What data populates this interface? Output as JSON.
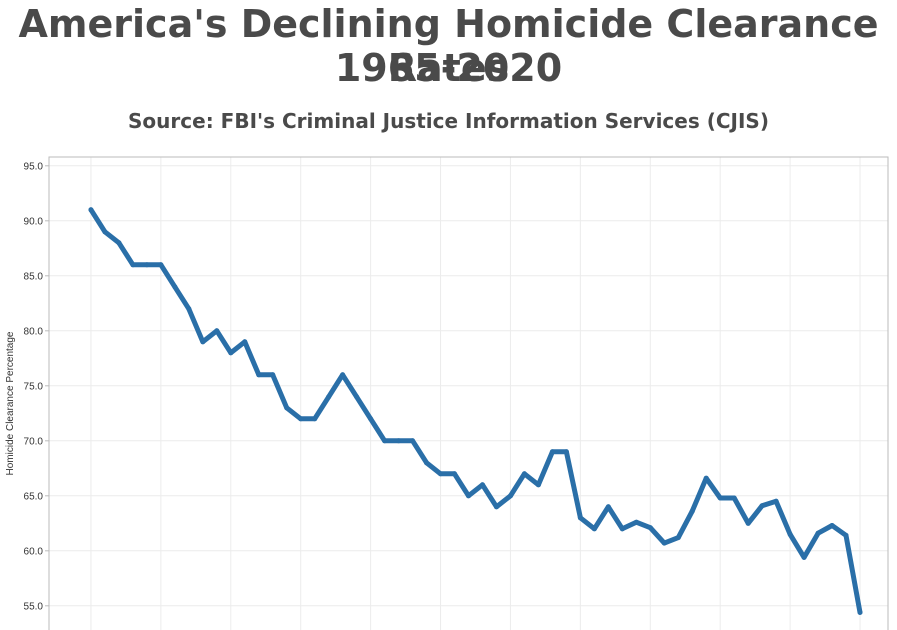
{
  "header": {
    "title_line1": "America's Declining Homicide Clearance Rates",
    "title_line2": "1965-2020",
    "subtitle": "Source: FBI's Criminal Justice Information Services (CJIS)"
  },
  "colors": {
    "line": "#2a6fa8",
    "grid": "#ececec",
    "axis": "#bbbbbb",
    "text": "#4a4a4a"
  },
  "chart_data": {
    "type": "line",
    "title": "America's Declining Homicide Clearance Rates 1965-2020",
    "subtitle": "Source: FBI's Criminal Justice Information Services (CJIS)",
    "xlabel": "",
    "ylabel": "Homicide Clearance Percentage",
    "xlim": [
      1962,
      2022
    ],
    "ylim": [
      52.8,
      95.8
    ],
    "yticks": [
      "95.0",
      "90.0",
      "85.0",
      "80.0",
      "75.0",
      "70.0",
      "65.0",
      "60.0",
      "55.0"
    ],
    "grid": true,
    "x": [
      1965,
      1966,
      1967,
      1968,
      1969,
      1970,
      1971,
      1972,
      1973,
      1974,
      1975,
      1976,
      1977,
      1978,
      1979,
      1980,
      1981,
      1982,
      1983,
      1984,
      1985,
      1986,
      1987,
      1988,
      1989,
      1990,
      1991,
      1992,
      1993,
      1994,
      1995,
      1996,
      1997,
      1998,
      1999,
      2000,
      2001,
      2002,
      2003,
      2004,
      2005,
      2006,
      2007,
      2008,
      2009,
      2010,
      2011,
      2012,
      2013,
      2014,
      2015,
      2016,
      2017,
      2018,
      2019,
      2020
    ],
    "series": [
      {
        "values": [
          91.0,
          89.0,
          88.0,
          86.0,
          86.0,
          86.0,
          84.0,
          82.0,
          79.0,
          80.0,
          78.0,
          79.0,
          76.0,
          76.0,
          73.0,
          72.0,
          72.0,
          74.0,
          76.0,
          74.0,
          72.0,
          70.0,
          70.0,
          70.0,
          68.0,
          67.0,
          67.0,
          65.0,
          66.0,
          64.0,
          65.0,
          67.0,
          66.0,
          69.0,
          69.0,
          63.0,
          62.0,
          64.0,
          62.0,
          62.6,
          62.1,
          60.7,
          61.2,
          63.6,
          66.6,
          64.8,
          64.8,
          62.5,
          64.1,
          64.5,
          61.5,
          59.4,
          61.6,
          62.3,
          61.4,
          54.4
        ]
      }
    ]
  }
}
